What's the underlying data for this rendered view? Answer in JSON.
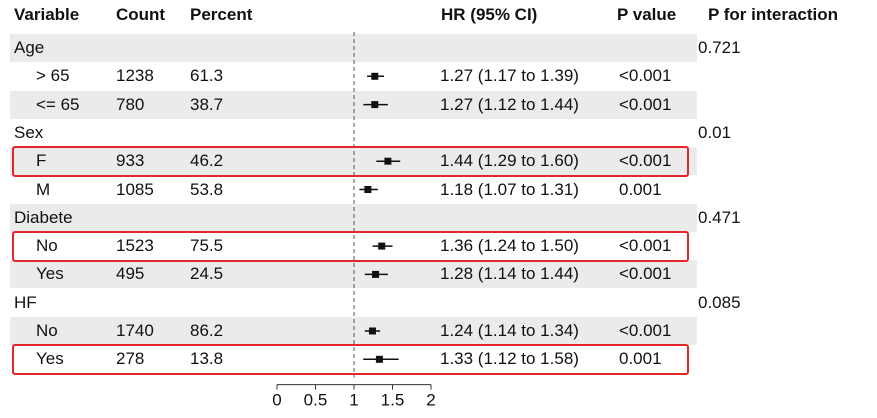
{
  "headers": {
    "variable": "Variable",
    "count": "Count",
    "percent": "Percent",
    "hr": "HR (95% CI)",
    "pvalue": "P value",
    "pinter": "P for interaction"
  },
  "chart_data": {
    "type": "forest",
    "reference_line": 1,
    "xlim": [
      0,
      2
    ],
    "xticks": [
      "0",
      "0.5",
      "1",
      "1.5",
      "2"
    ],
    "rows": [
      {
        "label": "Age",
        "is_group": true,
        "p_interaction": "0.721",
        "shaded": true
      },
      {
        "label": "> 65",
        "count": "1238",
        "percent": "61.3",
        "hr": 1.27,
        "lo": 1.17,
        "hi": 1.39,
        "hr_text": "1.27 (1.17 to 1.39)",
        "p": "<0.001",
        "shaded": false,
        "highlight": false
      },
      {
        "label": "<= 65",
        "count": "780",
        "percent": "38.7",
        "hr": 1.27,
        "lo": 1.12,
        "hi": 1.44,
        "hr_text": "1.27 (1.12 to 1.44)",
        "p": "<0.001",
        "shaded": true,
        "highlight": false
      },
      {
        "label": "Sex",
        "is_group": true,
        "p_interaction": "0.01",
        "shaded": false
      },
      {
        "label": "F",
        "count": "933",
        "percent": "46.2",
        "hr": 1.44,
        "lo": 1.29,
        "hi": 1.6,
        "hr_text": "1.44 (1.29 to 1.60)",
        "p": "<0.001",
        "shaded": true,
        "highlight": true
      },
      {
        "label": "M",
        "count": "1085",
        "percent": "53.8",
        "hr": 1.18,
        "lo": 1.07,
        "hi": 1.31,
        "hr_text": "1.18 (1.07 to 1.31)",
        "p": "0.001",
        "shaded": false,
        "highlight": false
      },
      {
        "label": "Diabete",
        "is_group": true,
        "p_interaction": "0.471",
        "shaded": true
      },
      {
        "label": "No",
        "count": "1523",
        "percent": "75.5",
        "hr": 1.36,
        "lo": 1.24,
        "hi": 1.5,
        "hr_text": "1.36 (1.24 to 1.50)",
        "p": "<0.001",
        "shaded": false,
        "highlight": true
      },
      {
        "label": "Yes",
        "count": "495",
        "percent": "24.5",
        "hr": 1.28,
        "lo": 1.14,
        "hi": 1.44,
        "hr_text": "1.28 (1.14 to 1.44)",
        "p": "<0.001",
        "shaded": true,
        "highlight": false
      },
      {
        "label": "HF",
        "is_group": true,
        "p_interaction": "0.085",
        "shaded": false
      },
      {
        "label": "No",
        "count": "1740",
        "percent": "86.2",
        "hr": 1.24,
        "lo": 1.14,
        "hi": 1.34,
        "hr_text": "1.24 (1.14 to 1.34)",
        "p": "<0.001",
        "shaded": true,
        "highlight": false
      },
      {
        "label": "Yes",
        "count": "278",
        "percent": "13.8",
        "hr": 1.33,
        "lo": 1.12,
        "hi": 1.58,
        "hr_text": "1.33 (1.12 to 1.58)",
        "p": "0.001",
        "shaded": false,
        "highlight": true
      }
    ]
  },
  "colors": {
    "shade": "#ebebeb",
    "highlight": "#e2262b",
    "ink": "#111111"
  }
}
